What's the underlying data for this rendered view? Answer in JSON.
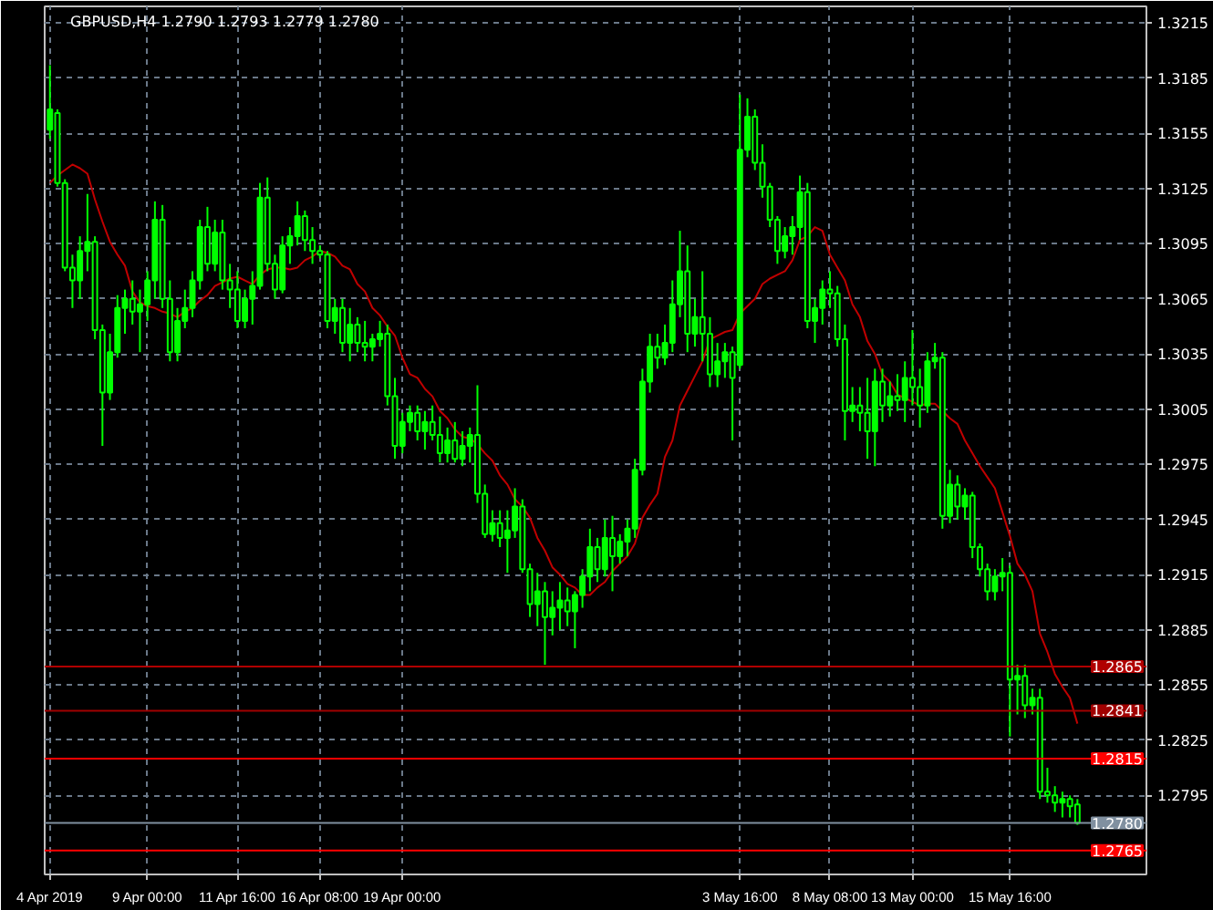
{
  "chart_data": {
    "type": "candlestick",
    "title": "GBPUSD,H4  1.2790 1.2793 1.2779 1.2780",
    "color": "#00ff00",
    "categories": [
      "4 Apr 2019",
      null,
      null,
      null,
      null,
      null,
      null,
      null,
      null,
      null,
      null,
      null,
      null,
      "9 Apr 00:00",
      null,
      null,
      null,
      null,
      null,
      null,
      null,
      null,
      null,
      null,
      null,
      "11 Apr 16:00",
      null,
      null,
      null,
      null,
      null,
      null,
      null,
      null,
      null,
      null,
      "16 Apr 08:00",
      null,
      null,
      null,
      null,
      null,
      null,
      null,
      null,
      null,
      null,
      "19 Apr 00:00",
      null,
      null,
      null,
      null,
      null,
      null,
      null,
      null,
      null,
      null,
      null,
      null,
      null,
      null,
      null,
      null,
      null,
      null,
      null,
      null,
      null,
      null,
      null,
      null,
      null,
      null,
      null,
      null,
      null,
      null,
      null,
      null,
      null,
      null,
      null,
      null,
      null,
      null,
      null,
      null,
      null,
      null,
      null,
      null,
      "3 May 16:00",
      null,
      null,
      null,
      null,
      null,
      null,
      null,
      null,
      null,
      null,
      null,
      "8 May 08:00",
      null,
      null,
      null,
      null,
      null,
      null,
      null,
      null,
      null,
      null,
      "13 May 00:00",
      null,
      null,
      null,
      null,
      null,
      null,
      null,
      null,
      null,
      null,
      null,
      null,
      "15 May 16:00",
      null,
      null,
      null,
      null,
      null,
      null,
      null,
      null,
      null
    ],
    "ohlc": [
      [
        1.3157,
        1.3192,
        1.3152,
        1.3168
      ],
      [
        1.3166,
        1.3168,
        1.3126,
        1.3128
      ],
      [
        1.3128,
        1.313,
        1.308,
        1.3082
      ],
      [
        1.3082,
        1.3089,
        1.306,
        1.3075
      ],
      [
        1.3075,
        1.3099,
        1.3065,
        1.3091
      ],
      [
        1.3091,
        1.3122,
        1.308,
        1.3096
      ],
      [
        1.3096,
        1.3099,
        1.3043,
        1.3048
      ],
      [
        1.3048,
        1.3051,
        1.2985,
        1.3014
      ],
      [
        1.3014,
        1.3046,
        1.301,
        1.3036
      ],
      [
        1.3036,
        1.3067,
        1.3033,
        1.306
      ],
      [
        1.306,
        1.307,
        1.3046,
        1.3065
      ],
      [
        1.3065,
        1.3075,
        1.3051,
        1.3058
      ],
      [
        1.3058,
        1.307,
        1.3036,
        1.3062
      ],
      [
        1.3062,
        1.308,
        1.3053,
        1.3075
      ],
      [
        1.3075,
        1.3118,
        1.3065,
        1.3108
      ],
      [
        1.3108,
        1.3116,
        1.306,
        1.3065
      ],
      [
        1.3065,
        1.3075,
        1.3031,
        1.3036
      ],
      [
        1.3036,
        1.306,
        1.3031,
        1.3053
      ],
      [
        1.3053,
        1.307,
        1.3049,
        1.306
      ],
      [
        1.306,
        1.308,
        1.3055,
        1.3075
      ],
      [
        1.3075,
        1.3108,
        1.307,
        1.3104
      ],
      [
        1.3104,
        1.3115,
        1.308,
        1.3084
      ],
      [
        1.3084,
        1.3108,
        1.308,
        1.3101
      ],
      [
        1.3101,
        1.3108,
        1.307,
        1.3075
      ],
      [
        1.3075,
        1.3084,
        1.306,
        1.307
      ],
      [
        1.307,
        1.308,
        1.3049,
        1.3053
      ],
      [
        1.3053,
        1.307,
        1.3049,
        1.3065
      ],
      [
        1.3065,
        1.308,
        1.3051,
        1.3072
      ],
      [
        1.3072,
        1.3128,
        1.307,
        1.312
      ],
      [
        1.312,
        1.3131,
        1.308,
        1.3084
      ],
      [
        1.3084,
        1.3089,
        1.3065,
        1.307
      ],
      [
        1.307,
        1.3099,
        1.3068,
        1.3094
      ],
      [
        1.3094,
        1.3104,
        1.3084,
        1.3099
      ],
      [
        1.3099,
        1.3118,
        1.3094,
        1.311
      ],
      [
        1.311,
        1.3113,
        1.3091,
        1.3097
      ],
      [
        1.3097,
        1.3104,
        1.3084,
        1.3091
      ],
      [
        1.3091,
        1.3094,
        1.3087,
        1.3089
      ],
      [
        1.3089,
        1.3091,
        1.3049,
        1.3053
      ],
      [
        1.3053,
        1.3065,
        1.3046,
        1.306
      ],
      [
        1.306,
        1.3065,
        1.3036,
        1.3041
      ],
      [
        1.3041,
        1.306,
        1.3031,
        1.3051
      ],
      [
        1.3051,
        1.3055,
        1.3036,
        1.3041
      ],
      [
        1.3041,
        1.3053,
        1.3031,
        1.3039
      ],
      [
        1.3039,
        1.3046,
        1.3031,
        1.3043
      ],
      [
        1.3043,
        1.3053,
        1.3039,
        1.3046
      ],
      [
        1.3046,
        1.3051,
        1.3007,
        1.3012
      ],
      [
        1.3012,
        1.3022,
        1.2978,
        1.2985
      ],
      [
        1.2985,
        1.3003,
        1.2981,
        1.2998
      ],
      [
        1.2998,
        1.3007,
        1.2993,
        1.3003
      ],
      [
        1.3003,
        1.3007,
        1.2988,
        1.2993
      ],
      [
        1.2993,
        1.3004,
        1.2983,
        1.2998
      ],
      [
        1.2998,
        1.3007,
        1.2988,
        1.2991
      ],
      [
        1.2991,
        1.3001,
        1.2976,
        1.2981
      ],
      [
        1.2981,
        1.2995,
        1.2976,
        1.2988
      ],
      [
        1.2988,
        1.2998,
        1.2976,
        1.2978
      ],
      [
        1.2978,
        1.2993,
        1.2974,
        1.2985
      ],
      [
        1.2985,
        1.2995,
        1.2976,
        1.2991
      ],
      [
        1.2991,
        1.3018,
        1.2954,
        1.2959
      ],
      [
        1.2959,
        1.2964,
        1.2935,
        1.2937
      ],
      [
        1.2937,
        1.295,
        1.2933,
        1.2943
      ],
      [
        1.2943,
        1.295,
        1.293,
        1.2935
      ],
      [
        1.2935,
        1.295,
        1.2916,
        1.2939
      ],
      [
        1.2939,
        1.2962,
        1.2935,
        1.2952
      ],
      [
        1.2952,
        1.2956,
        1.2916,
        1.2918
      ],
      [
        1.2918,
        1.2921,
        1.2892,
        1.2899
      ],
      [
        1.2899,
        1.2916,
        1.2887,
        1.2906
      ],
      [
        1.2906,
        1.2911,
        1.2866,
        1.2892
      ],
      [
        1.2892,
        1.2906,
        1.2882,
        1.2897
      ],
      [
        1.2897,
        1.2911,
        1.2885,
        1.2901
      ],
      [
        1.2901,
        1.2908,
        1.2887,
        1.2895
      ],
      [
        1.2895,
        1.2906,
        1.2875,
        1.2904
      ],
      [
        1.2904,
        1.2918,
        1.2897,
        1.2914
      ],
      [
        1.2914,
        1.294,
        1.2906,
        1.293
      ],
      [
        1.293,
        1.2935,
        1.2911,
        1.2918
      ],
      [
        1.2918,
        1.2945,
        1.2914,
        1.2935
      ],
      [
        1.2935,
        1.2947,
        1.2906,
        1.2925
      ],
      [
        1.2925,
        1.2937,
        1.2921,
        1.2933
      ],
      [
        1.2933,
        1.2945,
        1.2925,
        1.294
      ],
      [
        1.294,
        1.2978,
        1.2935,
        1.2972
      ],
      [
        1.2972,
        1.3027,
        1.2969,
        1.302
      ],
      [
        1.302,
        1.3046,
        1.3014,
        1.3039
      ],
      [
        1.3039,
        1.3046,
        1.3027,
        1.3033
      ],
      [
        1.3033,
        1.3051,
        1.3029,
        1.3041
      ],
      [
        1.3041,
        1.3075,
        1.3036,
        1.3062
      ],
      [
        1.3062,
        1.3102,
        1.3055,
        1.308
      ],
      [
        1.308,
        1.3094,
        1.3036,
        1.3046
      ],
      [
        1.3046,
        1.3065,
        1.3039,
        1.3055
      ],
      [
        1.3055,
        1.308,
        1.3031,
        1.3046
      ],
      [
        1.3046,
        1.3055,
        1.3017,
        1.3024
      ],
      [
        1.3024,
        1.3041,
        1.3017,
        1.3031
      ],
      [
        1.3031,
        1.3041,
        1.3022,
        1.3036
      ],
      [
        1.3036,
        1.3039,
        1.2988,
        1.3022
      ],
      [
        1.3029,
        1.3176,
        1.3027,
        1.3146
      ],
      [
        1.3146,
        1.3174,
        1.3142,
        1.3164
      ],
      [
        1.3164,
        1.3168,
        1.3135,
        1.3139
      ],
      [
        1.3139,
        1.3149,
        1.312,
        1.3126
      ],
      [
        1.3126,
        1.3128,
        1.3104,
        1.3108
      ],
      [
        1.3108,
        1.311,
        1.3084,
        1.3091
      ],
      [
        1.3091,
        1.3104,
        1.3087,
        1.3099
      ],
      [
        1.3099,
        1.311,
        1.3089,
        1.3104
      ],
      [
        1.3104,
        1.3132,
        1.3097,
        1.3123
      ],
      [
        1.3123,
        1.3128,
        1.3049,
        1.3053
      ],
      [
        1.3053,
        1.3065,
        1.3041,
        1.306
      ],
      [
        1.306,
        1.3075,
        1.3051,
        1.307
      ],
      [
        1.307,
        1.308,
        1.306,
        1.3068
      ],
      [
        1.3068,
        1.3072,
        1.3039,
        1.3043
      ],
      [
        1.3043,
        1.3051,
        1.2988,
        1.3004
      ],
      [
        1.3004,
        1.3017,
        1.2998,
        1.3007
      ],
      [
        1.3007,
        1.3017,
        1.2993,
        1.3003
      ],
      [
        1.3003,
        1.3022,
        1.2978,
        1.2993
      ],
      [
        1.2993,
        1.3027,
        1.2974,
        1.302
      ],
      [
        1.302,
        1.3027,
        1.2998,
        1.3007
      ],
      [
        1.3007,
        1.302,
        1.3001,
        1.3012
      ],
      [
        1.3012,
        1.3024,
        1.3004,
        1.301
      ],
      [
        1.301,
        1.3031,
        1.2998,
        1.3022
      ],
      [
        1.3022,
        1.3048,
        1.3007,
        1.3017
      ],
      [
        1.3017,
        1.3027,
        1.2995,
        1.3007
      ],
      [
        1.3007,
        1.3036,
        1.3003,
        1.3031
      ],
      [
        1.3031,
        1.3041,
        1.3027,
        1.3033
      ],
      [
        1.3033,
        1.3036,
        1.294,
        1.2947
      ],
      [
        1.2947,
        1.2972,
        1.2943,
        1.2964
      ],
      [
        1.2964,
        1.2969,
        1.2945,
        1.2952
      ],
      [
        1.2952,
        1.2962,
        1.2945,
        1.2958
      ],
      [
        1.2958,
        1.296,
        1.2924,
        1.293
      ],
      [
        1.293,
        1.2932,
        1.2914,
        1.2918
      ],
      [
        1.2918,
        1.2921,
        1.2901,
        1.2906
      ],
      [
        1.2906,
        1.2918,
        1.2901,
        1.2914
      ],
      [
        1.2914,
        1.2924,
        1.2906,
        1.2916
      ],
      [
        1.2916,
        1.292,
        1.2827,
        1.2858
      ],
      [
        1.2858,
        1.2866,
        1.2839,
        1.286
      ],
      [
        1.286,
        1.2866,
        1.2837,
        1.2844
      ],
      [
        1.2844,
        1.2853,
        1.2839,
        1.2848
      ],
      [
        1.2848,
        1.2853,
        1.2793,
        1.2797
      ],
      [
        1.2797,
        1.281,
        1.2791,
        1.2795
      ],
      [
        1.2795,
        1.28,
        1.2786,
        1.2791
      ],
      [
        1.2791,
        1.2797,
        1.2783,
        1.2793
      ],
      [
        1.2793,
        1.2795,
        1.2783,
        1.2789
      ],
      [
        1.279,
        1.2793,
        1.2779,
        1.278
      ]
    ],
    "series": [
      {
        "type": "line",
        "color": "#c00000",
        "values": [
          1.3128,
          1.3132,
          1.3135,
          1.3138,
          1.3136,
          1.3133,
          1.3119,
          1.3107,
          1.3096,
          1.3089,
          1.3083,
          1.3069,
          1.3063,
          1.3061,
          1.306,
          1.3058,
          1.3057,
          1.3055,
          1.3058,
          1.306,
          1.3064,
          1.3067,
          1.3072,
          1.3074,
          1.3076,
          1.3077,
          1.3075,
          1.3073,
          1.3078,
          1.3081,
          1.3082,
          1.3082,
          1.3081,
          1.3082,
          1.3086,
          1.3088,
          1.3091,
          1.309,
          1.3088,
          1.3083,
          1.3081,
          1.3073,
          1.3069,
          1.306,
          1.3056,
          1.305,
          1.3045,
          1.3033,
          1.3024,
          1.3022,
          1.3016,
          1.3012,
          1.3004,
          1.3,
          1.2994,
          1.299,
          1.2989,
          1.2986,
          1.2981,
          1.2977,
          1.2969,
          1.2964,
          1.2956,
          1.2952,
          1.2946,
          1.2935,
          1.2928,
          1.2919,
          1.2915,
          1.291,
          1.2908,
          1.2904,
          1.2904,
          1.2908,
          1.2911,
          1.2917,
          1.2921,
          1.2925,
          1.2932,
          1.2946,
          1.2953,
          1.2959,
          1.2979,
          1.2988,
          1.3007,
          1.3015,
          1.3023,
          1.3031,
          1.3043,
          1.3045,
          1.3047,
          1.3048,
          1.3057,
          1.3061,
          1.3065,
          1.3073,
          1.3076,
          1.3078,
          1.308,
          1.3086,
          1.3097,
          1.3099,
          1.3104,
          1.3102,
          1.3089,
          1.3082,
          1.3075,
          1.3062,
          1.3055,
          1.3042,
          1.3035,
          1.3024,
          1.302,
          1.3013,
          1.3011,
          1.3009,
          1.3007,
          1.3008,
          1.3008,
          1.3004,
          1.3,
          1.2997,
          1.2988,
          1.2981,
          1.2974,
          1.2968,
          1.2962,
          1.2949,
          1.2936,
          1.2921,
          1.2915,
          1.2906,
          1.2883,
          1.2873,
          1.2861,
          1.2854,
          1.2848,
          1.2834
        ]
      }
    ],
    "ylim": [
      1.2752,
      1.3224
    ],
    "yticks": [
      1.3215,
      1.3185,
      1.3155,
      1.3125,
      1.3095,
      1.3065,
      1.3035,
      1.3005,
      1.2975,
      1.2945,
      1.2915,
      1.2885,
      1.2855,
      1.2825,
      1.2795
    ],
    "ref_lines": [
      {
        "axis": "y",
        "value": 1.2865,
        "label": "1.2865",
        "color": "#b00000"
      },
      {
        "axis": "y",
        "value": 1.2841,
        "label": "1.2841",
        "color": "#a00000"
      },
      {
        "axis": "y",
        "value": 1.2815,
        "label": "1.2815",
        "color": "#ff0000"
      },
      {
        "axis": "y",
        "value": 1.278,
        "label": "1.2780",
        "color": "#8090a0"
      },
      {
        "axis": "y",
        "value": 1.2765,
        "label": "1.2765",
        "color": "#ff0000"
      }
    ],
    "grid": true
  }
}
